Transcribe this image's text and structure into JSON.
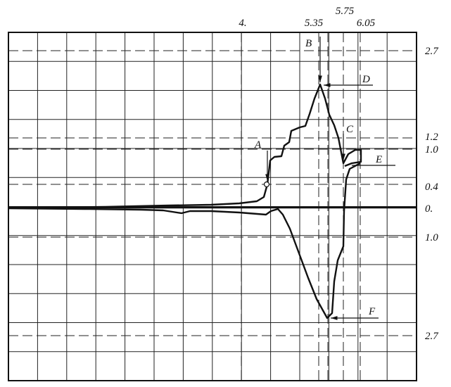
{
  "x_labels": [
    "4.",
    "5.35",
    "5.75",
    "6.05"
  ],
  "y_labels": [
    "2.7",
    "1.2",
    "1.0",
    "0.4",
    "0.",
    "1.0",
    "2.7"
  ],
  "point_labels": [
    "A",
    "B",
    "C",
    "D",
    "E",
    "F"
  ]
}
